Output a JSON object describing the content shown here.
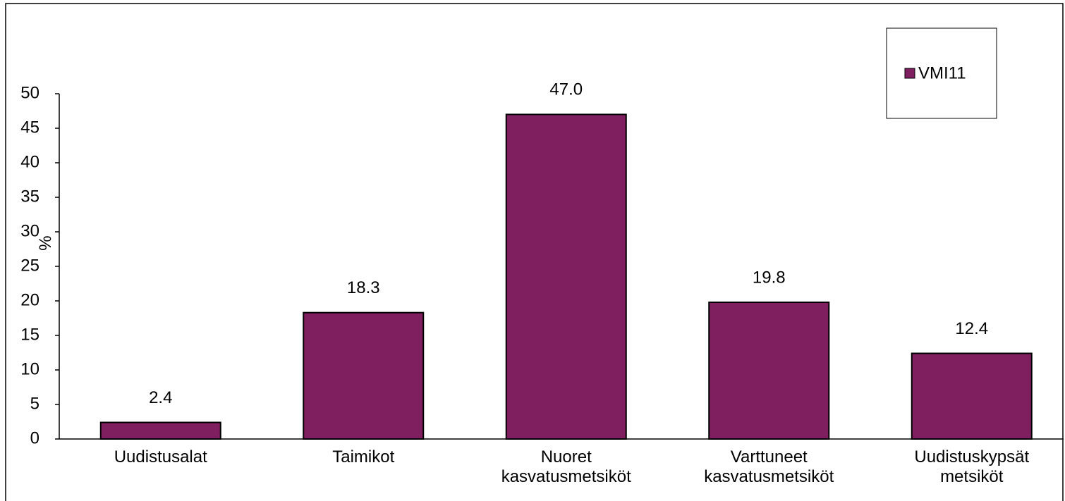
{
  "chart_data": {
    "type": "bar",
    "y_label": "%",
    "categories": [
      "Uudistusalat",
      "Taimikot",
      "Nuoret kasvatusmetsiköt",
      "Varttuneet kasvatusmetsiköt",
      "Uudistuskypsät metsiköt"
    ],
    "series": [
      {
        "name": "VMI11",
        "color": "#7f1f5f",
        "values": [
          2.4,
          18.3,
          47.0,
          19.8,
          12.4
        ],
        "value_labels": [
          "2.4",
          "18.3",
          "47.0",
          "19.8",
          "12.4"
        ]
      }
    ],
    "ylim": [
      0,
      50
    ],
    "yticks": [
      0,
      5,
      10,
      15,
      20,
      25,
      30,
      35,
      40,
      45,
      50
    ],
    "legend": "top-right",
    "grid": false
  }
}
